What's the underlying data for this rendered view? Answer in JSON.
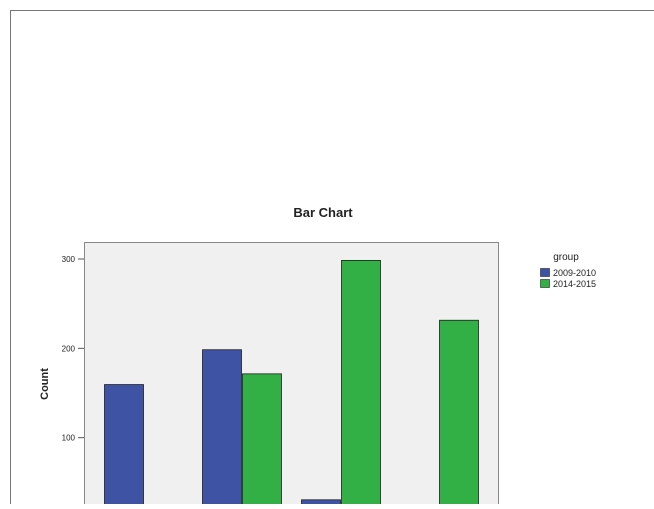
{
  "chart_data": {
    "type": "bar",
    "title": "Bar Chart",
    "ylabel": "Count",
    "xlabel": "",
    "ylim": [
      0,
      300
    ],
    "yticks": [
      100,
      200,
      300
    ],
    "categories": [
      "",
      "",
      "",
      ""
    ],
    "series": [
      {
        "name": "2009-2010",
        "color": "#3f53a5",
        "values": [
          160,
          199,
          31,
          0
        ]
      },
      {
        "name": "2014-2015",
        "color": "#33b045",
        "values": [
          0,
          172,
          299,
          232
        ]
      }
    ],
    "legend": {
      "title": "group",
      "position": "top-right"
    },
    "grid": false,
    "plot_background": "#f0f0f0"
  }
}
